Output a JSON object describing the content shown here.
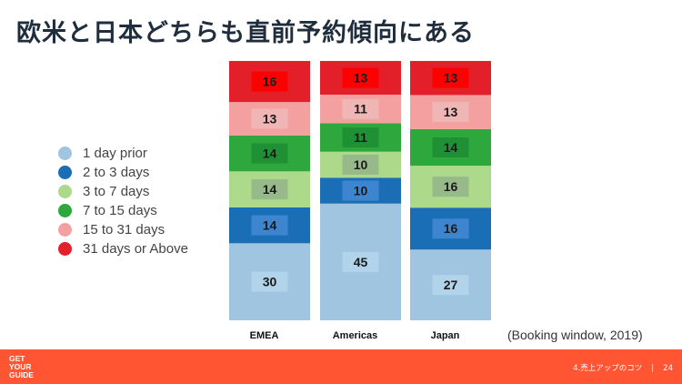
{
  "title": "欧米と日本どちらも直前予約傾向にある",
  "note": "(Booking window, 2019)",
  "footer": {
    "logo_lines": [
      "GET",
      "YOUR",
      "GUIDE"
    ],
    "section": "4.売上アップのコツ",
    "separator": "|",
    "page": "24"
  },
  "colors": {
    "1 day prior": "#9fc5e0",
    "2 to 3 days": "#1a6eb5",
    "3 to 7 days": "#acd98a",
    "7 to 15 days": "#2ea83d",
    "15 to 31 days": "#f5a0a0",
    "31 days or Above": "#e3202a"
  },
  "chart_data": {
    "type": "bar",
    "stacked": true,
    "normalized": true,
    "categories": [
      "EMEA",
      "Americas",
      "Japan"
    ],
    "series": [
      {
        "name": "1 day prior",
        "values": [
          30,
          45,
          27
        ]
      },
      {
        "name": "2 to 3 days",
        "values": [
          14,
          10,
          16
        ]
      },
      {
        "name": "3 to 7 days",
        "values": [
          14,
          10,
          16
        ]
      },
      {
        "name": "7 to 15 days",
        "values": [
          14,
          11,
          14
        ]
      },
      {
        "name": "15 to 31 days",
        "values": [
          13,
          11,
          13
        ]
      },
      {
        "name": "31 days or Above",
        "values": [
          16,
          13,
          13
        ]
      }
    ],
    "legend_position": "left",
    "grid": false
  }
}
